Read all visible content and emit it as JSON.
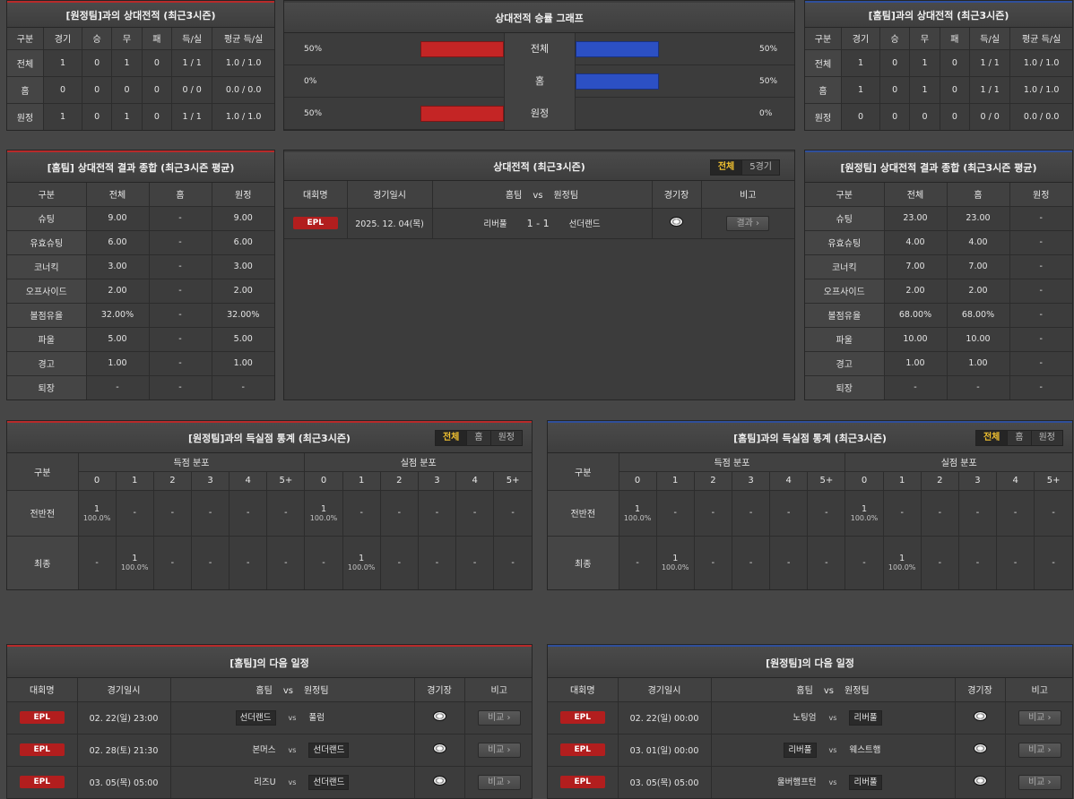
{
  "h2h_away": {
    "title": "[원정팀]과의 상대전적 (최근3시즌)",
    "headers": [
      "구분",
      "경기",
      "승",
      "무",
      "패",
      "득/실",
      "평균 득/실"
    ],
    "rows": [
      [
        "전체",
        "1",
        "0",
        "1",
        "0",
        "1 / 1",
        "1.0 / 1.0"
      ],
      [
        "홈",
        "0",
        "0",
        "0",
        "0",
        "0 / 0",
        "0.0 / 0.0"
      ],
      [
        "원정",
        "1",
        "0",
        "1",
        "0",
        "1 / 1",
        "1.0 / 1.0"
      ]
    ]
  },
  "h2h_home": {
    "title": "[홈팀]과의 상대전적 (최근3시즌)",
    "headers": [
      "구분",
      "경기",
      "승",
      "무",
      "패",
      "득/실",
      "평균 득/실"
    ],
    "rows": [
      [
        "전체",
        "1",
        "0",
        "1",
        "0",
        "1 / 1",
        "1.0 / 1.0"
      ],
      [
        "홈",
        "1",
        "0",
        "1",
        "0",
        "1 / 1",
        "1.0 / 1.0"
      ],
      [
        "원정",
        "0",
        "0",
        "0",
        "0",
        "0 / 0",
        "0.0 / 0.0"
      ]
    ]
  },
  "graph": {
    "title": "상대전적 승률 그래프",
    "colors": {
      "left": "#c42525",
      "right": "#2c50c4"
    },
    "rows": [
      {
        "label": "전체",
        "left": "50%",
        "right": "50%",
        "lv": 0.5,
        "rv": 0.5
      },
      {
        "label": "홈",
        "left": "0%",
        "right": "50%",
        "lv": 0,
        "rv": 0.5
      },
      {
        "label": "원정",
        "left": "50%",
        "right": "0%",
        "lv": 0.5,
        "rv": 0
      }
    ]
  },
  "sum_home": {
    "title": "[홈팀] 상대전적 결과 종합 (최근3시즌 평균)",
    "headers": [
      "구분",
      "전체",
      "홈",
      "원정"
    ],
    "rows": [
      [
        "슈팅",
        "9.00",
        "-",
        "9.00"
      ],
      [
        "유효슈팅",
        "6.00",
        "-",
        "6.00"
      ],
      [
        "코너킥",
        "3.00",
        "-",
        "3.00"
      ],
      [
        "오프사이드",
        "2.00",
        "-",
        "2.00"
      ],
      [
        "볼점유율",
        "32.00%",
        "-",
        "32.00%"
      ],
      [
        "파울",
        "5.00",
        "-",
        "5.00"
      ],
      [
        "경고",
        "1.00",
        "-",
        "1.00"
      ],
      [
        "퇴장",
        "-",
        "-",
        "-"
      ]
    ]
  },
  "sum_away": {
    "title": "[원정팀] 상대전적 결과 종합 (최근3시즌 평균)",
    "headers": [
      "구분",
      "전체",
      "홈",
      "원정"
    ],
    "rows": [
      [
        "슈팅",
        "23.00",
        "23.00",
        "-"
      ],
      [
        "유효슈팅",
        "4.00",
        "4.00",
        "-"
      ],
      [
        "코너킥",
        "7.00",
        "7.00",
        "-"
      ],
      [
        "오프사이드",
        "2.00",
        "2.00",
        "-"
      ],
      [
        "볼점유율",
        "68.00%",
        "68.00%",
        "-"
      ],
      [
        "파울",
        "10.00",
        "10.00",
        "-"
      ],
      [
        "경고",
        "1.00",
        "1.00",
        "-"
      ],
      [
        "퇴장",
        "-",
        "-",
        "-"
      ]
    ]
  },
  "h2h_list": {
    "title": "상대전적 (최근3시즌)",
    "toggle": [
      "전체",
      "5경기"
    ],
    "headers": {
      "league": "대회명",
      "date": "경기일시",
      "home": "홈팀",
      "vs": "vs",
      "away": "원정팀",
      "stadium": "경기장",
      "note": "비고"
    },
    "rows": [
      {
        "league": "EPL",
        "date": "2025. 12. 04(목)",
        "home": "리버풀",
        "score": "1 - 1",
        "away": "선더랜드",
        "btn": "결과 ›"
      }
    ]
  },
  "goals_away": {
    "title": "[원정팀]과의 득실점 통계 (최근3시즌)",
    "toggle": [
      "전체",
      "홈",
      "원정"
    ],
    "col": "구분",
    "scored": "득점 분포",
    "conceded": "실점 분포",
    "nums": [
      "0",
      "1",
      "2",
      "3",
      "4",
      "5+",
      "0",
      "1",
      "2",
      "3",
      "4",
      "5+"
    ],
    "rows": [
      {
        "label": "전반전",
        "cells": [
          [
            "1",
            "100.0%"
          ],
          [
            "-",
            ""
          ],
          [
            "-",
            ""
          ],
          [
            "-",
            ""
          ],
          [
            "-",
            ""
          ],
          [
            "-",
            ""
          ],
          [
            "1",
            "100.0%"
          ],
          [
            "-",
            ""
          ],
          [
            "-",
            ""
          ],
          [
            "-",
            ""
          ],
          [
            "-",
            ""
          ],
          [
            "-",
            ""
          ]
        ]
      },
      {
        "label": "최종",
        "cells": [
          [
            "-",
            ""
          ],
          [
            "1",
            "100.0%"
          ],
          [
            "-",
            ""
          ],
          [
            "-",
            ""
          ],
          [
            "-",
            ""
          ],
          [
            "-",
            ""
          ],
          [
            "-",
            ""
          ],
          [
            "1",
            "100.0%"
          ],
          [
            "-",
            ""
          ],
          [
            "-",
            ""
          ],
          [
            "-",
            ""
          ],
          [
            "-",
            ""
          ]
        ]
      }
    ]
  },
  "goals_home": {
    "title": "[홈팀]과의 득실점 통계 (최근3시즌)",
    "toggle": [
      "전체",
      "홈",
      "원정"
    ],
    "col": "구분",
    "scored": "득점 분포",
    "conceded": "실점 분포",
    "nums": [
      "0",
      "1",
      "2",
      "3",
      "4",
      "5+",
      "0",
      "1",
      "2",
      "3",
      "4",
      "5+"
    ],
    "rows": [
      {
        "label": "전반전",
        "cells": [
          [
            "1",
            "100.0%"
          ],
          [
            "-",
            ""
          ],
          [
            "-",
            ""
          ],
          [
            "-",
            ""
          ],
          [
            "-",
            ""
          ],
          [
            "-",
            ""
          ],
          [
            "1",
            "100.0%"
          ],
          [
            "-",
            ""
          ],
          [
            "-",
            ""
          ],
          [
            "-",
            ""
          ],
          [
            "-",
            ""
          ],
          [
            "-",
            ""
          ]
        ]
      },
      {
        "label": "최종",
        "cells": [
          [
            "-",
            ""
          ],
          [
            "1",
            "100.0%"
          ],
          [
            "-",
            ""
          ],
          [
            "-",
            ""
          ],
          [
            "-",
            ""
          ],
          [
            "-",
            ""
          ],
          [
            "-",
            ""
          ],
          [
            "1",
            "100.0%"
          ],
          [
            "-",
            ""
          ],
          [
            "-",
            ""
          ],
          [
            "-",
            ""
          ],
          [
            "-",
            ""
          ]
        ]
      }
    ]
  },
  "next_home": {
    "title": "[홈팀]의 다음 일정",
    "headers": {
      "league": "대회명",
      "date": "경기일시",
      "home": "홈팀",
      "vs": "vs",
      "away": "원정팀",
      "stadium": "경기장",
      "note": "비고"
    },
    "rows": [
      {
        "league": "EPL",
        "date": "02. 22(일) 23:00",
        "home": "선더랜드",
        "away": "풀럼",
        "hl": "home",
        "btn": "비교 ›"
      },
      {
        "league": "EPL",
        "date": "02. 28(토) 21:30",
        "home": "본머스",
        "away": "선더랜드",
        "hl": "away",
        "btn": "비교 ›"
      },
      {
        "league": "EPL",
        "date": "03. 05(목) 05:00",
        "home": "리즈U",
        "away": "선더랜드",
        "hl": "away",
        "btn": "비교 ›"
      }
    ]
  },
  "next_away": {
    "title": "[원정팀]의 다음 일정",
    "headers": {
      "league": "대회명",
      "date": "경기일시",
      "home": "홈팀",
      "vs": "vs",
      "away": "원정팀",
      "stadium": "경기장",
      "note": "비고"
    },
    "rows": [
      {
        "league": "EPL",
        "date": "02. 22(일) 00:00",
        "home": "노팅엄",
        "away": "리버풀",
        "hl": "away",
        "btn": "비교 ›"
      },
      {
        "league": "EPL",
        "date": "03. 01(일) 00:00",
        "home": "리버풀",
        "away": "웨스트햄",
        "hl": "home",
        "btn": "비교 ›"
      },
      {
        "league": "EPL",
        "date": "03. 05(목) 05:00",
        "home": "울버햄프턴",
        "away": "리버풀",
        "hl": "away",
        "btn": "비교 ›"
      }
    ]
  }
}
